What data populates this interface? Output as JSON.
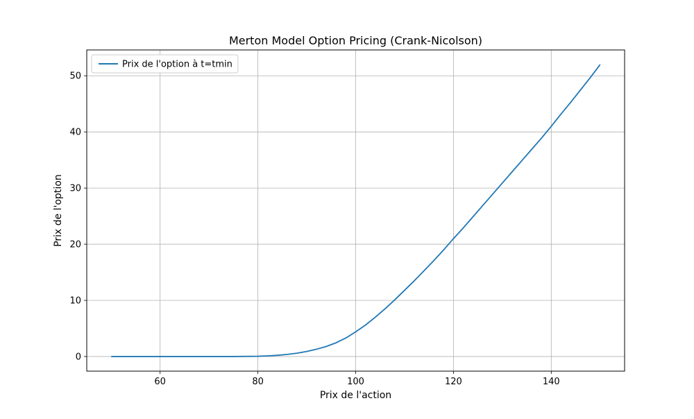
{
  "chart_data": {
    "type": "line",
    "title": "Merton Model Option Pricing (Crank-Nicolson)",
    "xlabel": "Prix de l'action",
    "ylabel": "Prix de l'option",
    "xlim": [
      45,
      155
    ],
    "ylim": [
      -2.6,
      54.6
    ],
    "xticks": [
      60,
      80,
      100,
      120,
      140
    ],
    "yticks": [
      0,
      10,
      20,
      30,
      40,
      50
    ],
    "grid": true,
    "legend_position": "top-left",
    "series": [
      {
        "name": "Prix de l'option à t=tmin",
        "color": "#1f77b4",
        "x": [
          50,
          60,
          70,
          75,
          80,
          82,
          84,
          86,
          88,
          90,
          92,
          94,
          96,
          98,
          100,
          102,
          104,
          106,
          108,
          110,
          112,
          114,
          116,
          118,
          120,
          122,
          124,
          126,
          128,
          130,
          132,
          134,
          136,
          138,
          140,
          142,
          144,
          146,
          148,
          150
        ],
        "y": [
          0,
          0,
          0,
          0,
          0.05,
          0.12,
          0.22,
          0.38,
          0.6,
          0.9,
          1.3,
          1.8,
          2.45,
          3.3,
          4.4,
          5.6,
          7.0,
          8.5,
          10.1,
          11.8,
          13.5,
          15.3,
          17.1,
          19.0,
          21.0,
          22.9,
          24.9,
          26.9,
          28.9,
          30.9,
          32.9,
          34.9,
          36.9,
          38.9,
          41.0,
          43.2,
          45.3,
          47.5,
          49.7,
          52.0
        ]
      }
    ]
  }
}
